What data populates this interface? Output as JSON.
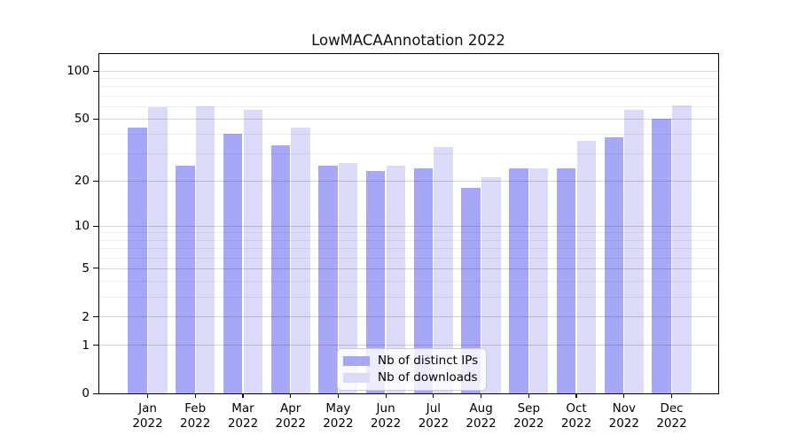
{
  "title": "LowMACAAnnotation 2022",
  "legend": {
    "items": [
      {
        "label": "Nb of distinct IPs",
        "color": "#a7a7f8"
      },
      {
        "label": "Nb of downloads",
        "color": "#dbdbf9"
      }
    ]
  },
  "axis": {
    "y_tick_labels": [
      "100",
      "50",
      "20",
      "10",
      "5",
      "2",
      "1",
      "0"
    ],
    "y_tick_values": [
      100,
      50,
      20,
      10,
      5,
      2,
      1,
      0
    ],
    "minor_grid_values": [
      3,
      4,
      6,
      7,
      8,
      9,
      30,
      40,
      60,
      70,
      80,
      90
    ],
    "major_grid_values": [
      1,
      2,
      5,
      10,
      20,
      50,
      100
    ]
  },
  "colors": {
    "distinct_ips_bar": "#a7a7f8",
    "downloads_bar": "#dbdbf9",
    "axis_line": "#000000",
    "grid_major": "#d6d6d6",
    "grid_minor": "#ededed",
    "legend_border": "#cccccc"
  },
  "chart_data": {
    "type": "bar",
    "title": "LowMACAAnnotation 2022",
    "categories": [
      "Jan 2022",
      "Feb 2022",
      "Mar 2022",
      "Apr 2022",
      "May 2022",
      "Jun 2022",
      "Jul 2022",
      "Aug 2022",
      "Sep 2022",
      "Oct 2022",
      "Nov 2022",
      "Dec 2022"
    ],
    "month_labels": [
      "Jan",
      "Feb",
      "Mar",
      "Apr",
      "May",
      "Jun",
      "Jul",
      "Aug",
      "Sep",
      "Oct",
      "Nov",
      "Dec"
    ],
    "year": "2022",
    "series": [
      {
        "name": "Nb of distinct IPs",
        "color": "#a7a7f8",
        "values": [
          44,
          25,
          40,
          34,
          25,
          23,
          24,
          18,
          24,
          24,
          38,
          50
        ]
      },
      {
        "name": "Nb of downloads",
        "color": "#dbdbf9",
        "values": [
          59,
          60,
          57,
          44,
          26,
          25,
          33,
          21,
          24,
          36,
          57,
          61
        ]
      }
    ],
    "xlabel": "",
    "ylabel": "",
    "yscale": "log10(value+1)",
    "ylim": [
      0,
      101
    ],
    "y_ticks": [
      0,
      1,
      2,
      5,
      10,
      20,
      50,
      100
    ],
    "grid": true,
    "legend_position": "lower center"
  }
}
